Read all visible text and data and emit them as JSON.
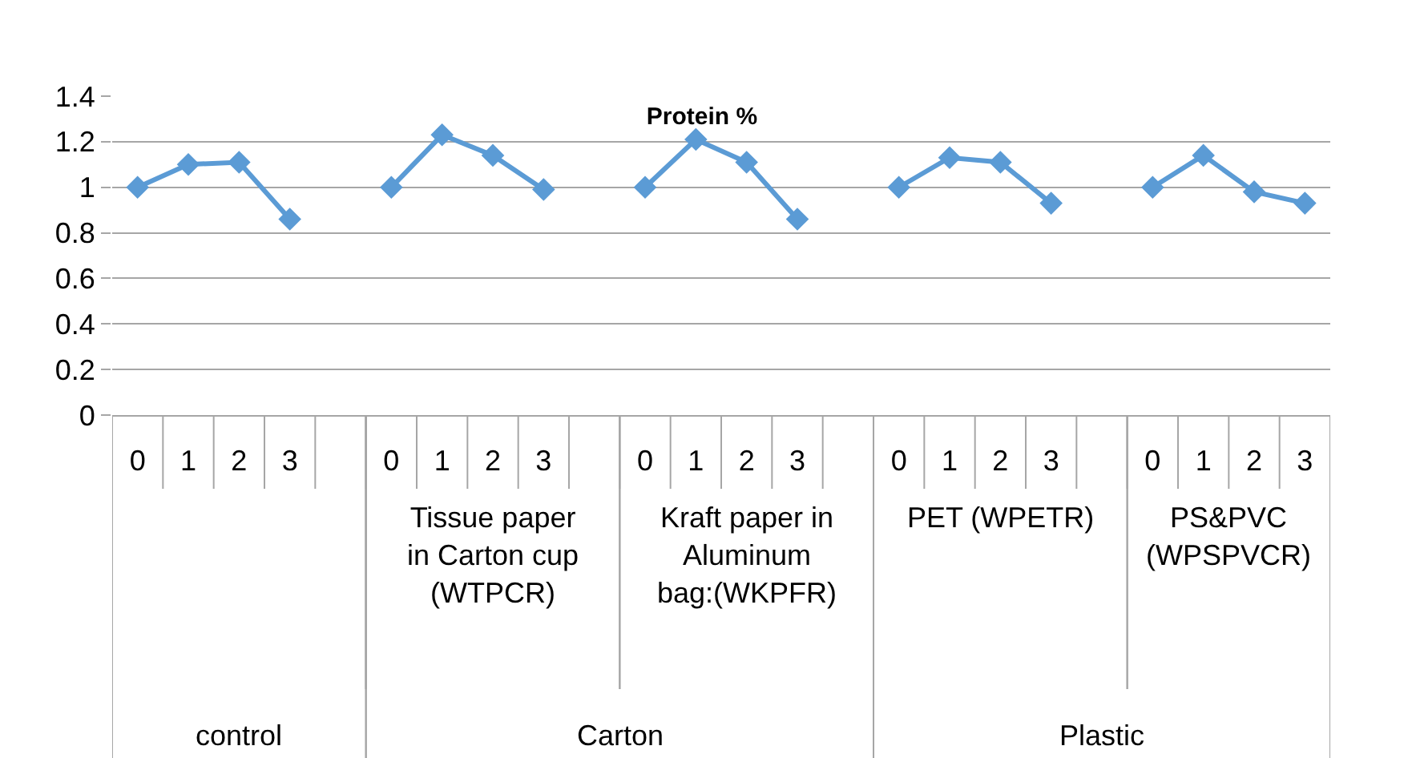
{
  "chart_data": {
    "type": "line",
    "title": "Protein %",
    "categories": [
      "0",
      "1",
      "2",
      "3",
      null,
      "0",
      "1",
      "2",
      "3",
      null,
      "0",
      "1",
      "2",
      "3",
      null,
      "0",
      "1",
      "2",
      "3",
      null,
      "0",
      "1",
      "2",
      "3"
    ],
    "series": [
      {
        "color": "#5b9bd5",
        "values": [
          1.0,
          1.1,
          1.11,
          0.86,
          null,
          1.0,
          1.23,
          1.14,
          0.99,
          null,
          1.0,
          1.21,
          1.11,
          0.86,
          null,
          1.0,
          1.13,
          1.11,
          0.93,
          null,
          1.0,
          1.14,
          0.98,
          0.93
        ]
      }
    ],
    "ylim": [
      0,
      1.4
    ],
    "yticks": [
      0,
      0.2,
      0.4,
      0.6,
      0.8,
      1,
      1.2,
      1.4
    ],
    "grid": "y",
    "legend": false,
    "marker": "diamond",
    "line_style": "solid",
    "annotations": [
      "Tissue paper in Carton cup (WTPCR)",
      "Kraft paper in Aluminum bag:(WKPFR)",
      "PET (WPETR)",
      "PS&PVC (WPSPVCR)",
      "control",
      "Carton",
      "Plastic"
    ]
  }
}
